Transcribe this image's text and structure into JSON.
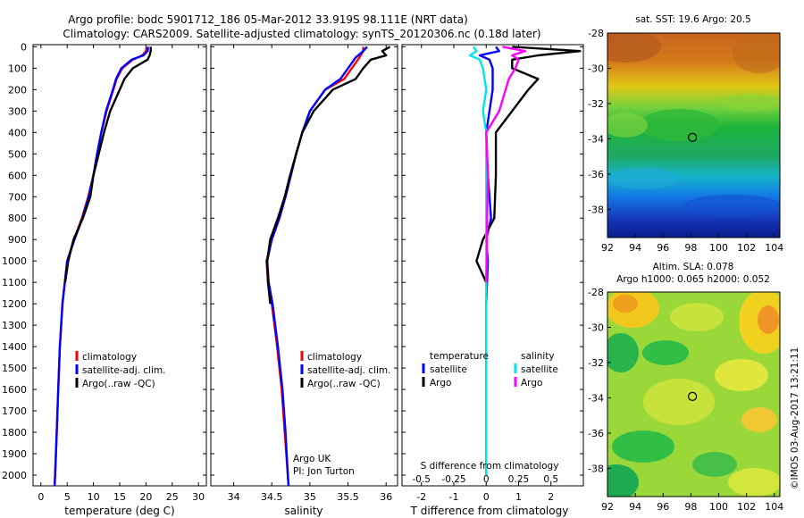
{
  "header": {
    "line1": "Argo profile: bodc 5901712_186 05-Mar-2012 33.919S 98.111E (NRT data)",
    "line2": "Climatology: CARS2009. Satellite-adjusted climatology: synTS_20120306.nc (0.18d later)"
  },
  "credit": "©IMOS 03-Aug-2017 13:21:11",
  "colors": {
    "climatology": "#ff0000",
    "satellite": "#0000ff",
    "argo": "#000000",
    "sat_s": "#00e5e5",
    "argo_s": "#ff00ff"
  },
  "depth_ticks": [
    "0",
    "100",
    "200",
    "300",
    "400",
    "500",
    "600",
    "700",
    "800",
    "900",
    "1000",
    "1100",
    "1200",
    "1300",
    "1400",
    "1500",
    "1600",
    "1700",
    "1800",
    "1900",
    "2000"
  ],
  "chart_data": [
    {
      "type": "line",
      "xlabel": "temperature (deg C)",
      "xlim": [
        -1.5,
        31.5
      ],
      "ylim": [
        2050,
        -10
      ],
      "x_ticks": [
        "0",
        "5",
        "10",
        "15",
        "20",
        "25",
        "30"
      ],
      "legend": [
        "climatology",
        "satellite-adj. clim.",
        "Argo(..raw -QC)"
      ],
      "series": [
        {
          "name": "climatology",
          "color": "#ff0000",
          "depth": [
            0,
            20,
            40,
            60,
            100,
            150,
            200,
            300,
            400,
            500,
            600,
            700,
            800,
            900,
            1000,
            1200,
            1400,
            1600,
            1800,
            2000,
            2050
          ],
          "values": [
            20.1,
            20.0,
            19.3,
            17.5,
            15.5,
            14.4,
            13.8,
            12.5,
            11.5,
            10.7,
            10.0,
            9.0,
            7.8,
            6.3,
            5.0,
            4.1,
            3.6,
            3.3,
            3.0,
            2.7,
            2.6
          ]
        },
        {
          "name": "satellite-adj. clim.",
          "color": "#0000ff",
          "depth": [
            0,
            20,
            40,
            60,
            100,
            150,
            200,
            300,
            400,
            500,
            600,
            700,
            800,
            900,
            1000,
            1200,
            1400,
            1600,
            1800,
            2000,
            2050
          ],
          "values": [
            20.4,
            20.3,
            19.5,
            17.3,
            15.3,
            14.3,
            13.7,
            12.4,
            11.5,
            10.7,
            10.0,
            9.1,
            7.9,
            6.4,
            5.0,
            4.1,
            3.6,
            3.3,
            3.0,
            2.7,
            2.6
          ]
        },
        {
          "name": "Argo(..raw -QC)",
          "color": "#000000",
          "depth": [
            0,
            20,
            40,
            60,
            100,
            150,
            200,
            300,
            400,
            500,
            600,
            700,
            800,
            900,
            1000,
            1100
          ],
          "values": [
            20.9,
            20.9,
            20.7,
            20.3,
            17.5,
            15.9,
            15.0,
            13.2,
            12.0,
            11.0,
            10.0,
            9.4,
            8.0,
            6.2,
            5.2,
            4.6
          ]
        }
      ]
    },
    {
      "type": "line",
      "xlabel": "salinity",
      "xlim": [
        33.7,
        36.15
      ],
      "ylim": [
        2050,
        -10
      ],
      "x_ticks": [
        "34",
        "34.5",
        "35",
        "35.5",
        "36"
      ],
      "legend": [
        "climatology",
        "satellite-adj. clim.",
        "Argo(..raw -QC)"
      ],
      "annotation": [
        "Argo UK",
        "PI: Jon Turton"
      ],
      "series": [
        {
          "name": "climatology",
          "color": "#ff0000",
          "depth": [
            0,
            20,
            50,
            100,
            150,
            200,
            300,
            400,
            500,
            600,
            700,
            800,
            900,
            1000,
            1100,
            1200,
            1400,
            1600,
            1800,
            2000,
            2050
          ],
          "values": [
            35.7,
            35.7,
            35.65,
            35.55,
            35.45,
            35.2,
            35.0,
            34.9,
            34.82,
            34.75,
            34.68,
            34.6,
            34.5,
            34.43,
            34.45,
            34.5,
            34.57,
            34.63,
            34.67,
            34.71,
            34.72
          ]
        },
        {
          "name": "satellite-adj. clim.",
          "color": "#0000ff",
          "depth": [
            0,
            20,
            50,
            100,
            150,
            200,
            300,
            400,
            500,
            600,
            700,
            800,
            900,
            1000,
            1100,
            1200,
            1400,
            1600,
            1800,
            2000,
            2050
          ],
          "values": [
            35.75,
            35.7,
            35.6,
            35.5,
            35.4,
            35.2,
            35.0,
            34.9,
            34.82,
            34.75,
            34.68,
            34.6,
            34.5,
            34.44,
            34.46,
            34.51,
            34.58,
            34.64,
            34.68,
            34.71,
            34.72
          ]
        },
        {
          "name": "Argo(..raw -QC)",
          "color": "#000000",
          "depth": [
            0,
            20,
            40,
            60,
            100,
            150,
            200,
            300,
            400,
            500,
            600,
            700,
            800,
            900,
            1000,
            1100,
            1200
          ],
          "values": [
            36.05,
            35.95,
            36.0,
            35.8,
            35.7,
            35.6,
            35.3,
            35.05,
            34.9,
            34.82,
            34.74,
            34.67,
            34.58,
            34.48,
            34.44,
            34.45,
            34.48
          ]
        }
      ]
    },
    {
      "type": "line",
      "xlabel": "T difference from climatology",
      "xlabel_top": "S difference from climatology",
      "xlim": [
        -2.6,
        3.0
      ],
      "ylim": [
        2050,
        -10
      ],
      "x_ticks": [
        "-2",
        "-1",
        "0",
        "1",
        "2"
      ],
      "x_ticks_top": [
        "-0.5",
        "-0.25",
        "0",
        "0.25",
        "0.5"
      ],
      "legend_title_t": "temperature",
      "legend_title_s": "salinity",
      "legend": [
        "satellite",
        "Argo",
        "satellite",
        "Argo"
      ],
      "series": [
        {
          "name": "satellite",
          "color": "#0000ff",
          "depth": [
            0,
            20,
            40,
            60,
            100,
            200,
            300,
            400,
            600,
            800,
            900,
            1000,
            1200,
            1400,
            1600,
            1800,
            2000
          ],
          "values": [
            0.3,
            0.4,
            -0.2,
            0.1,
            0.2,
            0.2,
            0.1,
            0.0,
            0.05,
            0.15,
            0.0,
            0.05,
            0.0,
            0.0,
            0.0,
            0.0,
            0.0
          ]
        },
        {
          "name": "Argo",
          "color": "#000000",
          "depth": [
            0,
            20,
            40,
            60,
            100,
            150,
            200,
            300,
            400,
            600,
            800,
            900,
            1000,
            1100
          ],
          "values": [
            0.8,
            2.9,
            1.6,
            0.8,
            0.8,
            1.6,
            1.3,
            0.8,
            0.3,
            0.3,
            0.25,
            -0.1,
            -0.3,
            0.0
          ]
        },
        {
          "name": "satellite",
          "color": "#00e5e5",
          "depth": [
            0,
            20,
            40,
            60,
            100,
            200,
            300,
            400,
            600,
            800,
            900,
            1000,
            1200,
            1400,
            1600,
            1800,
            2000
          ],
          "values": [
            -0.4,
            -0.3,
            -0.5,
            -0.2,
            -0.1,
            0.0,
            -0.1,
            0.0,
            0.0,
            0.0,
            0.0,
            0.0,
            0.0,
            0.0,
            0.0,
            0.0,
            0.0
          ]
        },
        {
          "name": "Argo",
          "color": "#ff00ff",
          "depth": [
            0,
            20,
            40,
            60,
            100,
            150,
            200,
            300,
            400,
            600,
            800,
            1000,
            1100
          ],
          "values": [
            0.5,
            1.2,
            0.8,
            1.0,
            0.9,
            0.7,
            0.6,
            0.4,
            0.0,
            0.05,
            0.03,
            0.02,
            0.0
          ]
        }
      ]
    },
    {
      "type": "heatmap",
      "title": "sat. SST: 19.6 Argo: 20.5",
      "x_ticks": [
        "92",
        "94",
        "96",
        "98",
        "100",
        "102",
        "104"
      ],
      "y_ticks": [
        "-28",
        "-30",
        "-32",
        "-34",
        "-36",
        "-38"
      ],
      "marker": {
        "lon": 98.111,
        "lat": -33.919
      }
    },
    {
      "type": "heatmap",
      "title": [
        "Altim. SLA: 0.078",
        "Argo h1000: 0.065 h2000: 0.052"
      ],
      "x_ticks": [
        "92",
        "94",
        "96",
        "98",
        "100",
        "102",
        "104"
      ],
      "y_ticks": [
        "-28",
        "-30",
        "-32",
        "-34",
        "-36",
        "-38"
      ],
      "marker": {
        "lon": 98.111,
        "lat": -33.919
      }
    }
  ]
}
